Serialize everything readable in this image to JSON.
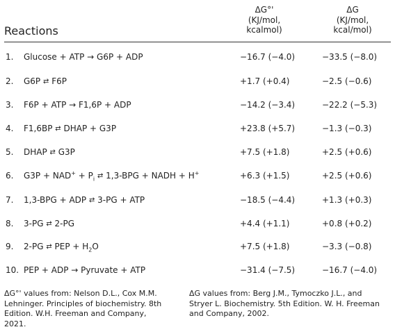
{
  "header": {
    "reactions_label": "Reactions",
    "dg0_col": [
      "ΔG°'",
      "(KJ/mol,",
      "kcalmol)"
    ],
    "dg_col": [
      "ΔG",
      "(KJ/mol,",
      "kcal/mol)"
    ]
  },
  "rows": [
    {
      "num": "1.",
      "parts": [
        "Glucose + ATP ",
        "→",
        " G6P + ADP"
      ],
      "dg0": "−16.7 (−4.0)",
      "dg": "−33.5 (−8.0)"
    },
    {
      "num": "2.",
      "parts": [
        "G6P ",
        "⇄",
        " F6P"
      ],
      "dg0": "+1.7 (+0.4)",
      "dg": "−2.5 (−0.6)"
    },
    {
      "num": "3.",
      "parts": [
        "F6P + ATP ",
        "→",
        " F1,6P + ADP"
      ],
      "dg0": "−14.2 (−3.4)",
      "dg": "−22.2 (−5.3)"
    },
    {
      "num": "4.",
      "parts": [
        "F1,6BP ",
        "⇄",
        " DHAP + G3P"
      ],
      "dg0": "+23.8 (+5.7)",
      "dg": "−1.3 (−0.3)"
    },
    {
      "num": "5.",
      "parts": [
        "DHAP ",
        "⇄",
        " G3P"
      ],
      "dg0": "+7.5 (+1.8)",
      "dg": "+2.5 (+0.6)"
    },
    {
      "num": "6.",
      "parts": [
        "G3P + NAD",
        "+",
        " + P",
        "i",
        " ",
        "⇄",
        " 1,3-BPG + NADH + H",
        "+"
      ],
      "dg0": "+6.3 (+1.5)",
      "dg": "+2.5 (+0.6)"
    },
    {
      "num": "7.",
      "parts": [
        "1,3-BPG + ADP ",
        "⇄",
        " 3-PG + ATP"
      ],
      "dg0": "−18.5 (−4.4)",
      "dg": "+1.3 (+0.3)"
    },
    {
      "num": "8.",
      "parts": [
        "3-PG ",
        "⇄",
        " 2-PG"
      ],
      "dg0": "+4.4 (+1.1)",
      "dg": "+0.8 (+0.2)"
    },
    {
      "num": "9.",
      "parts": [
        "2-PG ",
        "⇄",
        " PEP + H",
        "2",
        "O"
      ],
      "dg0": "+7.5 (+1.8)",
      "dg": "−3.3 (−0.8)"
    },
    {
      "num": "10.",
      "parts": [
        "PEP + ADP ",
        "→",
        " Pyruvate + ATP"
      ],
      "dg0": "−31.4 (−7.5)",
      "dg": "−16.7 (−4.0)"
    }
  ],
  "footnotes": {
    "left": "ΔG°' values from: Nelson D.L., Cox M.M. Lehninger. Principles of biochemistry. 8th Edition. W.H. Freeman and Company, 2021.",
    "right": "ΔG values from: Berg J.M., Tymoczko J.L., and Stryer L. Biochemistry. 5th Edition. W. H. Freeman and Company, 2002."
  }
}
